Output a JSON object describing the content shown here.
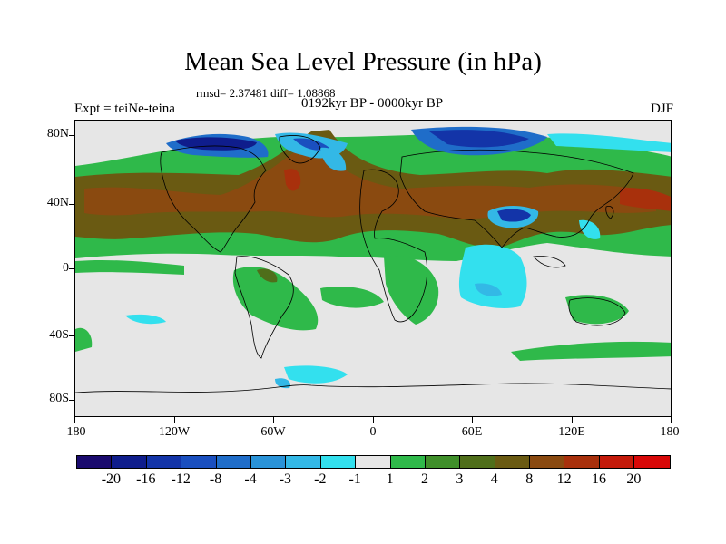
{
  "header": {
    "title": "Mean Sea Level Pressure (in hPa)",
    "stats": "rmsd= 2.37481 diff= 1.08868",
    "subtitle": "0192kyr BP - 0000kyr BP",
    "expt": "Expt = teiNe-teina",
    "season": "DJF"
  },
  "axes": {
    "lat_labels": [
      "80N",
      "40N",
      "0",
      "40S",
      "80S"
    ],
    "lon_labels": [
      "180",
      "120W",
      "60W",
      "0",
      "60E",
      "120E",
      "180"
    ]
  },
  "colorbar": {
    "labels": [
      "-20",
      "-16",
      "-12",
      "-8",
      "-4",
      "-3",
      "-2",
      "-1",
      "1",
      "2",
      "3",
      "4",
      "8",
      "12",
      "16",
      "20"
    ],
    "colors": [
      "#1a0a6e",
      "#0f1d8c",
      "#1334a8",
      "#1a4fbf",
      "#1f6dc9",
      "#2a93d8",
      "#33b8e6",
      "#33e0ee",
      "#e6e6e6",
      "#2fb94a",
      "#3f8f2a",
      "#4f6e1a",
      "#6a5a12",
      "#8a4a10",
      "#a8300c",
      "#c41a0a",
      "#d80808"
    ]
  },
  "chart_data": {
    "type": "heatmap",
    "title": "Mean Sea Level Pressure (in hPa)",
    "units": "hPa",
    "difference": "0192kyr BP - 0000kyr BP",
    "season": "DJF",
    "rmsd": 2.37481,
    "diff": 1.08868,
    "x_range": [
      -180,
      180
    ],
    "y_range": [
      -90,
      90
    ],
    "levels": [
      -20,
      -16,
      -12,
      -8,
      -4,
      -3,
      -2,
      -1,
      1,
      2,
      3,
      4,
      8,
      12,
      16,
      20
    ]
  }
}
